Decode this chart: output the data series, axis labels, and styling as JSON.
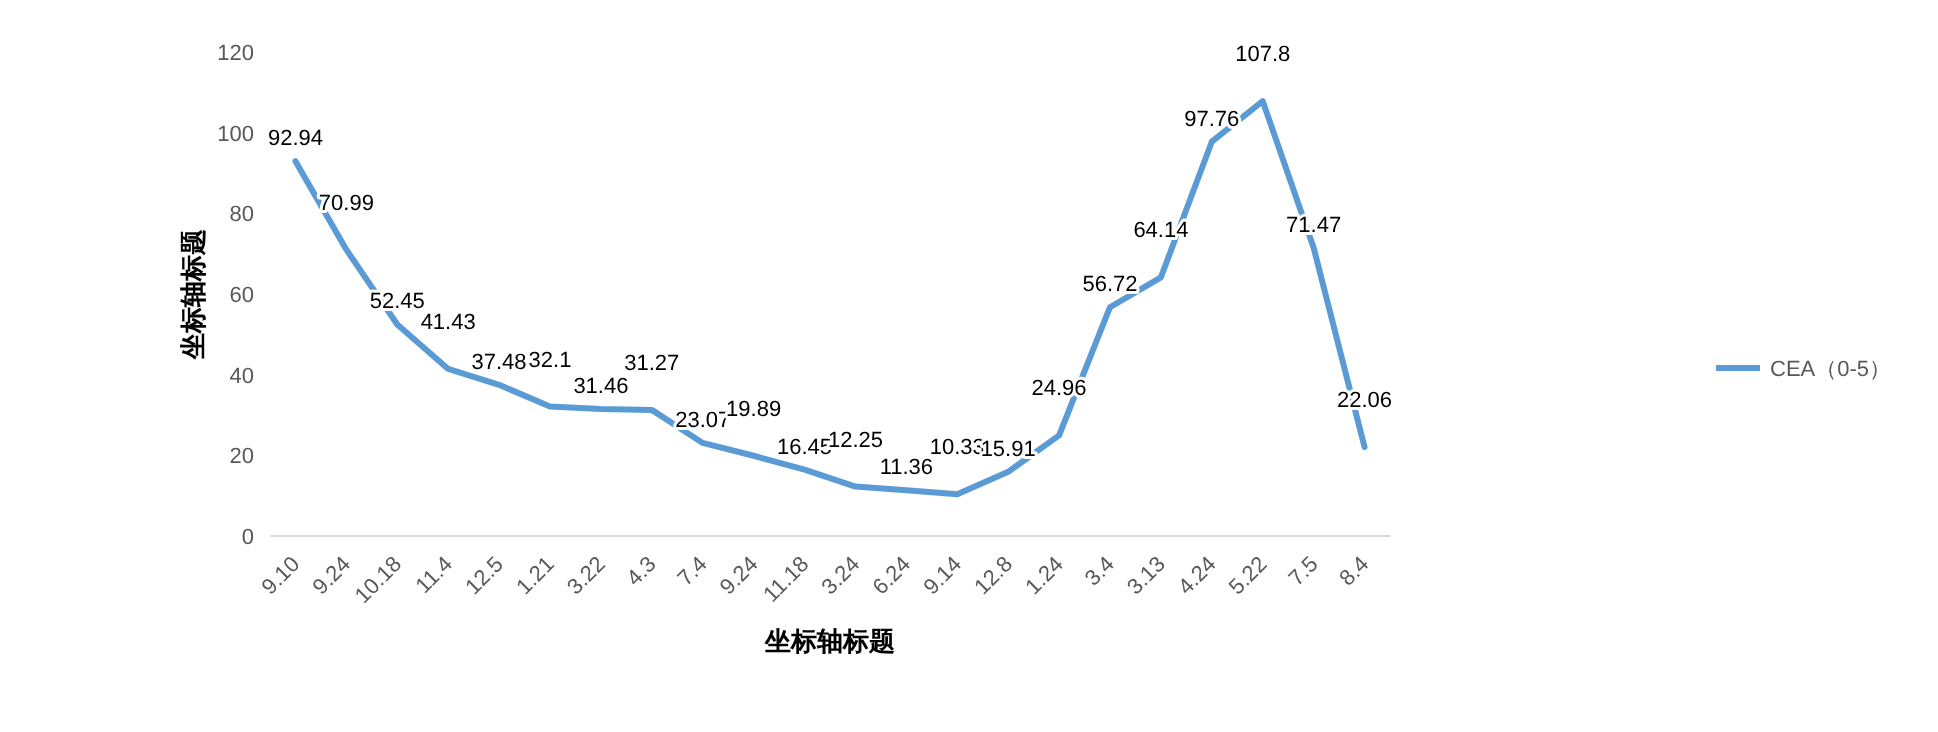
{
  "chart_data": {
    "type": "line",
    "xlabel": "坐标轴标题",
    "ylabel": "坐标轴标题",
    "categories": [
      "9.10",
      "9.24",
      "10.18",
      "11.4",
      "12.5",
      "1.21",
      "3.22",
      "4.3",
      "7.4",
      "9.24",
      "11.18",
      "3.24",
      "6.24",
      "9.14",
      "12.8",
      "1.24",
      "3.4",
      "3.13",
      "4.24",
      "5.22",
      "7.5",
      "8.4"
    ],
    "series": [
      {
        "name": "CEA（0-5）",
        "color": "#5b9bd5",
        "values": [
          92.94,
          70.99,
          52.45,
          41.43,
          37.48,
          32.1,
          31.46,
          31.27,
          23.07,
          19.89,
          16.45,
          12.25,
          11.36,
          10.33,
          15.91,
          24.96,
          56.72,
          64.14,
          97.76,
          107.8,
          71.47,
          22.06
        ]
      }
    ],
    "ylim": [
      0,
      120
    ],
    "yticks": [
      0,
      20,
      40,
      60,
      80,
      100,
      120
    ],
    "data_labels": true,
    "legend": "right",
    "grid": false,
    "marker": "none",
    "line_style": "solid"
  }
}
